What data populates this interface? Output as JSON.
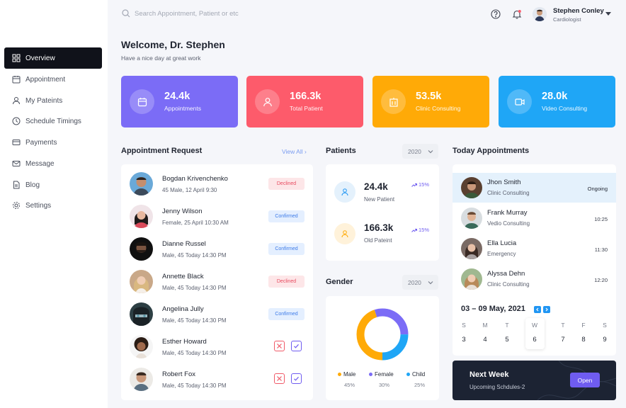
{
  "search": {
    "placeholder": "Search Appointment, Patient or etc"
  },
  "user": {
    "name": "Stephen Conley",
    "role": "Cardiologist"
  },
  "sidebar": {
    "items": [
      {
        "label": "Overview",
        "icon": "grid-icon",
        "active": true
      },
      {
        "label": "Appointment",
        "icon": "calendar-icon"
      },
      {
        "label": "My Pateints",
        "icon": "user-icon"
      },
      {
        "label": "Schedule Timings",
        "icon": "clock-icon"
      },
      {
        "label": "Payments",
        "icon": "card-icon"
      },
      {
        "label": "Message",
        "icon": "mail-icon"
      },
      {
        "label": "Blog",
        "icon": "document-icon"
      },
      {
        "label": "Settings",
        "icon": "gear-icon"
      }
    ]
  },
  "welcome": {
    "title": "Welcome, Dr. Stephen",
    "subtitle": "Have a nice day at great work"
  },
  "stats": [
    {
      "value": "24.4k",
      "label": "Appointments",
      "color": "#7b6cf6",
      "icon": "calendar-icon"
    },
    {
      "value": "166.3k",
      "label": "Total Patient",
      "color": "#fd5b6b",
      "icon": "user-icon"
    },
    {
      "value": "53.5k",
      "label": "Clinic Consulting",
      "color": "#ffaa07",
      "icon": "building-icon"
    },
    {
      "value": "28.0k",
      "label": "Video Consulting",
      "color": "#1fa6f6",
      "icon": "video-icon"
    }
  ],
  "requests": {
    "title": "Appointment Request",
    "view_all": "View All",
    "rows": [
      {
        "name": "Bogdan Krivenchenko",
        "info": "45 Male, 12 April 9:30",
        "status": "Declined"
      },
      {
        "name": "Jenny Wilson",
        "info": "Female, 25 April 10:30 AM",
        "status": "Confirmed"
      },
      {
        "name": "Dianne Russel",
        "info": "Male, 45 Today 14:30 PM",
        "status": "Confirmed"
      },
      {
        "name": "Annette Black",
        "info": "Male, 45 Today 14:30 PM",
        "status": "Declined"
      },
      {
        "name": "Angelina Jully",
        "info": "Male, 45 Today 14:30 PM",
        "status": "Confirmed"
      },
      {
        "name": "Esther Howard",
        "info": "Male, 45 Today 14:30 PM",
        "status": ""
      },
      {
        "name": "Robert Fox",
        "info": "Male, 45 Today 14:30 PM",
        "status": ""
      }
    ]
  },
  "patients": {
    "title": "Patients",
    "year": "2020",
    "new": {
      "value": "24.4k",
      "label": "New Patient",
      "trend": "15%"
    },
    "old": {
      "value": "166.3k",
      "label": "Old Pateint",
      "trend": "15%"
    }
  },
  "gender": {
    "title": "Gender",
    "year": "2020",
    "items": [
      {
        "label": "Male",
        "percent": "45%",
        "color": "#ffaa07"
      },
      {
        "label": "Female",
        "percent": "30%",
        "color": "#7b6cf6"
      },
      {
        "label": "Child",
        "percent": "25%",
        "color": "#1fa6f6"
      }
    ]
  },
  "today": {
    "title": "Today Appointments",
    "rows": [
      {
        "name": "Jhon Smith",
        "type": "Clinic Consulting",
        "time": "Ongoing"
      },
      {
        "name": "Frank Murray",
        "type": "Vedio Consulting",
        "time": "10:25"
      },
      {
        "name": "Ella Lucia",
        "type": "Emergency",
        "time": "11:30"
      },
      {
        "name": "Alyssa Dehn",
        "type": "Clinic Consulting",
        "time": "12:20"
      }
    ]
  },
  "calendar": {
    "range": "03 – 09 May, 2021",
    "weekdays": [
      "S",
      "M",
      "T",
      "W",
      "T",
      "F",
      "S"
    ],
    "days": [
      "3",
      "4",
      "5",
      "6",
      "7",
      "8",
      "9"
    ]
  },
  "next_week": {
    "title": "Next Week",
    "subtitle": "Upcoming Schdules-2",
    "button": "Open"
  }
}
